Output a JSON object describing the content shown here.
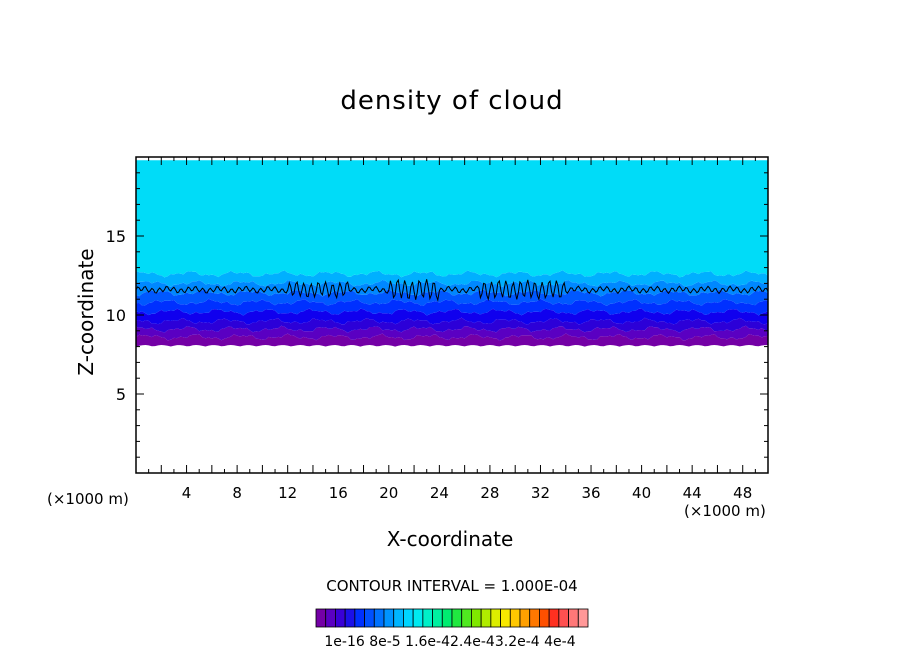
{
  "chart_data": {
    "type": "heatmap",
    "title": "density of cloud",
    "xlabel": "X-coordinate",
    "ylabel": "Z-coordinate",
    "x_unit": "(×1000 m)",
    "z_unit": "(×1000 m)",
    "xlim": [
      0,
      50
    ],
    "ylim": [
      0,
      20
    ],
    "x_ticks": [
      4,
      8,
      12,
      16,
      20,
      24,
      28,
      32,
      36,
      40,
      44,
      48
    ],
    "y_ticks": [
      5,
      10,
      15
    ],
    "contour_interval_label": "CONTOUR INTERVAL = 1.000E-04",
    "colorbar_labels_text": "1e-16 8e-5 1.6e-42.4e-43.2e-4 4e-4",
    "colorbar_colors": [
      "#7400a6",
      "#5a00c2",
      "#3a00d6",
      "#1c10e8",
      "#0030ff",
      "#0050ff",
      "#0072ff",
      "#0094ff",
      "#00b6ff",
      "#00d6ff",
      "#00eaf0",
      "#00f0c8",
      "#00f0a0",
      "#00ec70",
      "#20e840",
      "#50e820",
      "#80e800",
      "#b0ec00",
      "#dcee00",
      "#f8e800",
      "#ffc800",
      "#ffa000",
      "#ff7800",
      "#ff5000",
      "#ff3020",
      "#ff5050",
      "#ff7878",
      "#ff9898"
    ],
    "layers": [
      {
        "from": 8.0,
        "to": 8.6,
        "color": "#7400a6"
      },
      {
        "from": 8.6,
        "to": 9.1,
        "color": "#5a00c2"
      },
      {
        "from": 9.1,
        "to": 9.6,
        "color": "#2c00d8"
      },
      {
        "from": 9.6,
        "to": 10.2,
        "color": "#1000ee"
      },
      {
        "from": 10.2,
        "to": 10.8,
        "color": "#0030ff"
      },
      {
        "from": 10.8,
        "to": 11.4,
        "color": "#0058ff"
      },
      {
        "from": 11.4,
        "to": 12.0,
        "color": "#0088ff"
      },
      {
        "from": 12.0,
        "to": 12.6,
        "color": "#00b0ff"
      },
      {
        "from": 12.6,
        "to": 19.8,
        "color": "#00dcf8"
      }
    ],
    "contour_line_z": 11.6
  }
}
